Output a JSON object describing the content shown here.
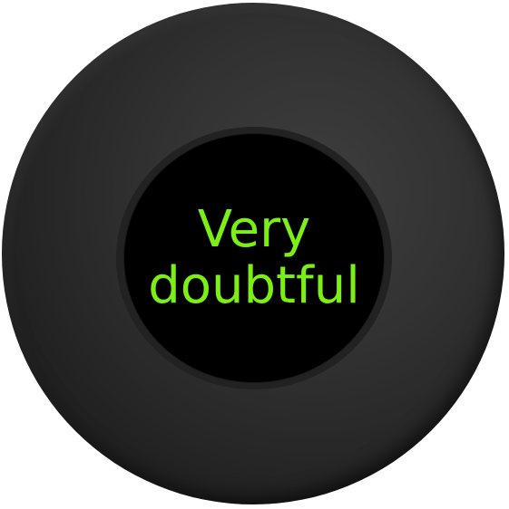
{
  "magic_ball": {
    "answer_lines": [
      "Very",
      "doubtful"
    ],
    "answer_color": "#7cf014",
    "body_color": "#2e2e2e",
    "window_color": "#000000"
  }
}
